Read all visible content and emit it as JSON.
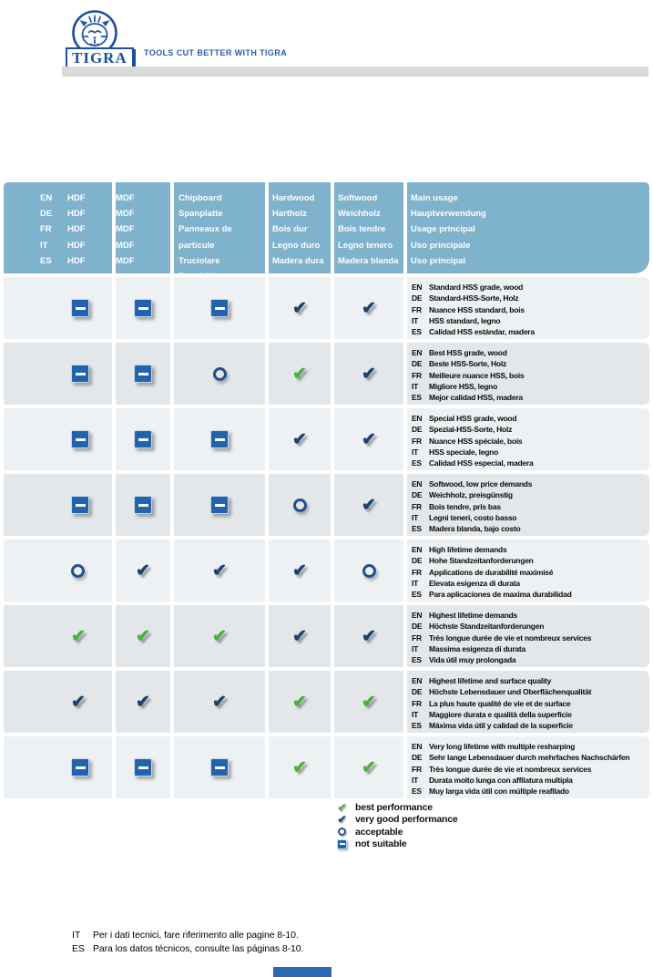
{
  "brand": {
    "logo_text": "TIGRA",
    "tagline": "TOOLS CUT BETTER WITH TIGRA"
  },
  "colors": {
    "header_blue": "#7fb2cd",
    "row_light": "#eef1f3",
    "row_dark": "#e3e7ea",
    "navy": "#1b416f",
    "green": "#47b23a",
    "square_fill": "#2164ad",
    "circle_stroke": "#215189",
    "brand_blue": "#1d4f9e",
    "tagline_blue": "#2a5caa",
    "graybar": "#dadada",
    "bottom_tab": "#2b6ab3"
  },
  "table": {
    "header": {
      "languages": [
        "EN",
        "DE",
        "FR",
        "IT",
        "ES"
      ],
      "columns": [
        {
          "id": "hdf",
          "labels": [
            "HDF",
            "HDF",
            "HDF",
            "HDF",
            "HDF"
          ]
        },
        {
          "id": "mdf",
          "labels": [
            "MDF",
            "MDF",
            "MDF",
            "MDF",
            "MDF"
          ]
        },
        {
          "id": "chipboard",
          "labels": [
            "Chipboard",
            "Spanplatte",
            "Panneaux de particule",
            "Truciolare",
            "Panel de aglomerado"
          ]
        },
        {
          "id": "hardwood",
          "labels": [
            "Hardwood",
            "Hartholz",
            "Bois dur",
            "Legno duro",
            "Madera dura"
          ]
        },
        {
          "id": "softwood",
          "labels": [
            "Softwood",
            "Weichholz",
            "Bois tendre",
            "Legno tenero",
            "Madera blanda"
          ]
        },
        {
          "id": "main_usage",
          "labels": [
            "Main usage",
            "Hauptverwendung",
            "Usage principal",
            "Uso principale",
            "Uso principal"
          ]
        }
      ]
    },
    "rows": [
      {
        "shade": "light",
        "ratings": [
          "not_suitable",
          "not_suitable",
          "not_suitable",
          "very_good",
          "very_good"
        ],
        "usage": [
          [
            "EN",
            "Standard HSS grade, wood"
          ],
          [
            "DE",
            "Standard-HSS-Sorte, Holz"
          ],
          [
            "FR",
            "Nuance HSS standard, bois"
          ],
          [
            "IT",
            "HSS standard, legno"
          ],
          [
            "ES",
            "Calidad HSS estándar, madera"
          ]
        ]
      },
      {
        "shade": "dark",
        "ratings": [
          "not_suitable",
          "not_suitable",
          "acceptable",
          "best",
          "very_good"
        ],
        "usage": [
          [
            "EN",
            "Best HSS grade, wood"
          ],
          [
            "DE",
            "Beste HSS-Sorte, Holz"
          ],
          [
            "FR",
            "Meilleure nuance HSS, bois"
          ],
          [
            "IT",
            "Migliore HSS, legno"
          ],
          [
            "ES",
            "Mejor calidad HSS, madera"
          ]
        ]
      },
      {
        "shade": "light",
        "ratings": [
          "not_suitable",
          "not_suitable",
          "not_suitable",
          "very_good",
          "very_good"
        ],
        "usage": [
          [
            "EN",
            "Special HSS grade, wood"
          ],
          [
            "DE",
            "Spezial-HSS-Sorte, Holz"
          ],
          [
            "FR",
            "Nuance HSS spéciale, bois"
          ],
          [
            "IT",
            "HSS speciale, legno"
          ],
          [
            "ES",
            "Calidad HSS especial, madera"
          ]
        ]
      },
      {
        "shade": "dark",
        "ratings": [
          "not_suitable",
          "not_suitable",
          "not_suitable",
          "acceptable",
          "very_good"
        ],
        "usage": [
          [
            "EN",
            "Softwood, low price demands"
          ],
          [
            "DE",
            "Weichholz, preisgünstig"
          ],
          [
            "FR",
            "Bois tendre, pris bas"
          ],
          [
            "IT",
            "Legni teneri, costo basso"
          ],
          [
            "ES",
            "Madera blanda, bajo costo"
          ]
        ]
      },
      {
        "shade": "light",
        "ratings": [
          "acceptable",
          "very_good",
          "very_good",
          "very_good",
          "acceptable"
        ],
        "usage": [
          [
            "EN",
            "High lifetime demands"
          ],
          [
            "DE",
            "Hohe Standzeitanforderungen"
          ],
          [
            "FR",
            "Applications de durabilité maximisé"
          ],
          [
            "IT",
            "Elevata esigenza di durata"
          ],
          [
            "ES",
            "Para aplicaciones de maxima durabilidad"
          ]
        ]
      },
      {
        "shade": "dark",
        "ratings": [
          "best",
          "best",
          "best",
          "very_good",
          "very_good"
        ],
        "usage": [
          [
            "EN",
            "Highest lifetime demands"
          ],
          [
            "DE",
            "Höchste Standzeitanforderungen"
          ],
          [
            "FR",
            "Très longue durée de vie et nombreux services"
          ],
          [
            "IT",
            "Massima esigenza di durata"
          ],
          [
            "ES",
            "Vida útil muy prolongada"
          ]
        ]
      },
      {
        "shade": "dark",
        "ratings": [
          "very_good",
          "very_good",
          "very_good",
          "best",
          "best"
        ],
        "usage": [
          [
            "EN",
            "Highest lifetime and surface quality"
          ],
          [
            "DE",
            "Höchste Lebensdauer und Oberflächenqualität"
          ],
          [
            "FR",
            "La plus haute qualité de vie et de surface"
          ],
          [
            "IT",
            "Maggiore durata e qualità della superficie"
          ],
          [
            "ES",
            "Máxima vida útil y calidad de la superficie"
          ]
        ]
      },
      {
        "shade": "light",
        "ratings": [
          "not_suitable",
          "not_suitable",
          "not_suitable",
          "best",
          "best"
        ],
        "usage": [
          [
            "EN",
            "Very long lifetime with multiple resharping"
          ],
          [
            "DE",
            "Sehr lange Lebensdauer durch mehrfaches Nachschärfen"
          ],
          [
            "FR",
            "Très longue durée de vie et nombreux services"
          ],
          [
            "IT",
            "Durata molto lunga con affilatura multipla"
          ],
          [
            "ES",
            "Muy larga vida útil con múltiple reafilado"
          ]
        ]
      }
    ]
  },
  "legend": [
    {
      "icon": "best",
      "label": "best performance"
    },
    {
      "icon": "very_good",
      "label": "very good performance"
    },
    {
      "icon": "acceptable",
      "label": "acceptable"
    },
    {
      "icon": "not_suitable",
      "label": "not suitable"
    }
  ],
  "footnotes": [
    {
      "code": "IT",
      "text": "Per i dati tecnici, fare riferimento alle pagine 8-10."
    },
    {
      "code": "ES",
      "text": "Para los datos técnicos, consulte las páginas 8-10."
    }
  ]
}
